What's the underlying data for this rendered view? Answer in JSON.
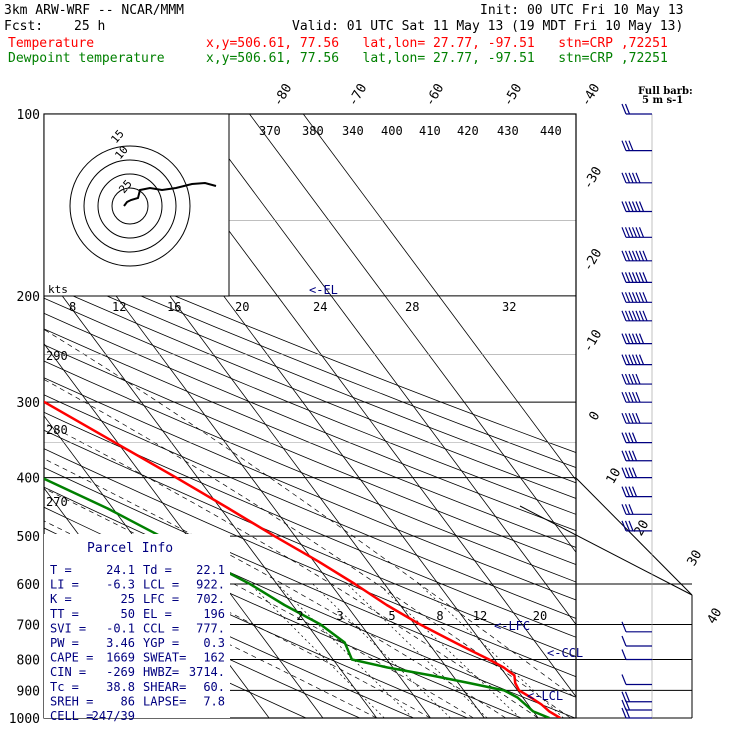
{
  "header": {
    "model": "3km ARW-WRF -- NCAR/MMM",
    "init": "Init: 00 UTC Fri 10 May 13",
    "fcst_label": "Fcst:",
    "fcst_value": "25 h",
    "valid": "Valid: 01 UTC Sat 11 May 13 (19 MDT Fri 10 May 13)",
    "temp_legend": "Temperature",
    "dew_legend": "Dewpoint temperature",
    "coord_text": "x,y=506.61, 77.56   lat,lon= 27.77, -97.51   stn=CRP ,72251"
  },
  "colors": {
    "temperature": "#ff0000",
    "dewpoint": "#008000",
    "wind": "#000080",
    "grid": "#000000"
  },
  "chart_data": {
    "type": "line",
    "title": "",
    "y_axis": "pressure (hPa), log scale",
    "pressure_ticks": [
      100,
      200,
      300,
      400,
      500,
      600,
      700,
      800,
      900,
      1000
    ],
    "isotherm_labels": [
      "-80",
      "-70",
      "-60",
      "-50",
      "-40",
      "-30",
      "-20",
      "-10",
      "0",
      "10",
      "20",
      "30",
      "40"
    ],
    "theta_labels": [
      "370",
      "380",
      "340",
      "400",
      "410",
      "420",
      "430",
      "440"
    ],
    "theta_left_labels": [
      "290",
      "280",
      "270"
    ],
    "mixing_ratio_labels": [
      "2",
      "3",
      "5",
      "8",
      "12",
      "20"
    ],
    "hodo_kts_label": "kts",
    "hodo_speed_labels": [
      "8",
      "12",
      "16",
      "20",
      "24",
      "28",
      "32"
    ],
    "hodo_ring_labels": [
      "15",
      "10",
      "25"
    ],
    "level_markers": [
      "<-EL",
      "<-LFC",
      "<-CCL",
      "<-LCL"
    ],
    "series": [
      {
        "name": "Temperature",
        "points": [
          [
            1000,
            24.1
          ],
          [
            975,
            23.0
          ],
          [
            950,
            22.5
          ],
          [
            925,
            21.5
          ],
          [
            900,
            20.3
          ],
          [
            875,
            20.6
          ],
          [
            850,
            21.5
          ],
          [
            825,
            20.6
          ],
          [
            800,
            19.0
          ],
          [
            775,
            17.0
          ],
          [
            750,
            15.0
          ],
          [
            700,
            11.0
          ],
          [
            650,
            7.5
          ],
          [
            600,
            4.5
          ],
          [
            550,
            0.8
          ],
          [
            500,
            -3.8
          ],
          [
            450,
            -8.5
          ],
          [
            400,
            -14.0
          ],
          [
            350,
            -20.5
          ],
          [
            300,
            -28.0
          ],
          [
            250,
            -37.5
          ],
          [
            225,
            -42.5
          ],
          [
            200,
            -48.0
          ],
          [
            175,
            -54.0
          ],
          [
            150,
            -58.5
          ],
          [
            125,
            -61.0
          ],
          [
            100,
            -64.0
          ]
        ]
      },
      {
        "name": "Dewpoint temperature",
        "points": [
          [
            1000,
            22.1
          ],
          [
            975,
            20.0
          ],
          [
            950,
            19.5
          ],
          [
            925,
            19.0
          ],
          [
            900,
            17.5
          ],
          [
            875,
            12.0
          ],
          [
            850,
            6.0
          ],
          [
            825,
            -1.0
          ],
          [
            800,
            -6.5
          ],
          [
            775,
            -6.0
          ],
          [
            750,
            -5.5
          ],
          [
            700,
            -7.5
          ],
          [
            650,
            -11.5
          ],
          [
            600,
            -15.0
          ],
          [
            550,
            -20.0
          ],
          [
            500,
            -25.0
          ],
          [
            450,
            -31.0
          ],
          [
            400,
            -39.0
          ],
          [
            350,
            -45.0
          ],
          [
            300,
            -52.0
          ],
          [
            250,
            -60.0
          ],
          [
            200,
            -67.0
          ],
          [
            175,
            -69.0
          ],
          [
            150,
            -70.5
          ],
          [
            125,
            -72.0
          ],
          [
            100,
            -74.5
          ]
        ]
      }
    ],
    "wind_barbs": {
      "legend": "Full barb:",
      "legend_unit": "5 m s-1",
      "levels": [
        {
          "p": 100,
          "speed": 10,
          "dir": 260
        },
        {
          "p": 115,
          "speed": 15,
          "dir": 260
        },
        {
          "p": 130,
          "speed": 25,
          "dir": 260
        },
        {
          "p": 145,
          "speed": 30,
          "dir": 260
        },
        {
          "p": 160,
          "speed": 30,
          "dir": 260
        },
        {
          "p": 175,
          "speed": 35,
          "dir": 260
        },
        {
          "p": 190,
          "speed": 35,
          "dir": 260
        },
        {
          "p": 205,
          "speed": 40,
          "dir": 260
        },
        {
          "p": 220,
          "speed": 35,
          "dir": 260
        },
        {
          "p": 240,
          "speed": 30,
          "dir": 260
        },
        {
          "p": 260,
          "speed": 30,
          "dir": 260
        },
        {
          "p": 280,
          "speed": 25,
          "dir": 260
        },
        {
          "p": 300,
          "speed": 25,
          "dir": 255
        },
        {
          "p": 325,
          "speed": 25,
          "dir": 255
        },
        {
          "p": 350,
          "speed": 20,
          "dir": 255
        },
        {
          "p": 375,
          "speed": 20,
          "dir": 250
        },
        {
          "p": 400,
          "speed": 20,
          "dir": 250
        },
        {
          "p": 430,
          "speed": 20,
          "dir": 250
        },
        {
          "p": 460,
          "speed": 15,
          "dir": 245
        },
        {
          "p": 490,
          "speed": 15,
          "dir": 240
        },
        {
          "p": 720,
          "speed": 5,
          "dir": 200
        },
        {
          "p": 760,
          "speed": 5,
          "dir": 190
        },
        {
          "p": 800,
          "speed": 5,
          "dir": 180
        },
        {
          "p": 880,
          "speed": 5,
          "dir": 170
        },
        {
          "p": 940,
          "speed": 10,
          "dir": 160
        },
        {
          "p": 970,
          "speed": 10,
          "dir": 150
        },
        {
          "p": 1000,
          "speed": 10,
          "dir": 150
        }
      ]
    },
    "parcel_info": {
      "title": "Parcel Info",
      "rows": [
        [
          "T  =",
          "24.1",
          "Td =",
          "22.1"
        ],
        [
          "LI =",
          "-6.3",
          "LCL =",
          "922."
        ],
        [
          "K  =",
          "25",
          "LFC =",
          "702."
        ],
        [
          "TT =",
          "50",
          "EL  =",
          "196"
        ],
        [
          "SVI =",
          "-0.1",
          "CCL =",
          "777."
        ],
        [
          "PW =",
          "3.46",
          "YGP =",
          "0.3"
        ],
        [
          "CAPE =",
          "1669",
          "SWEAT=",
          "162"
        ],
        [
          "CIN =",
          "-269",
          "HWBZ=",
          "3714."
        ],
        [
          "Tc =",
          "38.8",
          "SHEAR=",
          "60."
        ],
        [
          "SREH =",
          "86",
          "LAPSE=",
          "7.8"
        ],
        [
          "CELL =",
          "247/39",
          "",
          ""
        ]
      ]
    }
  }
}
